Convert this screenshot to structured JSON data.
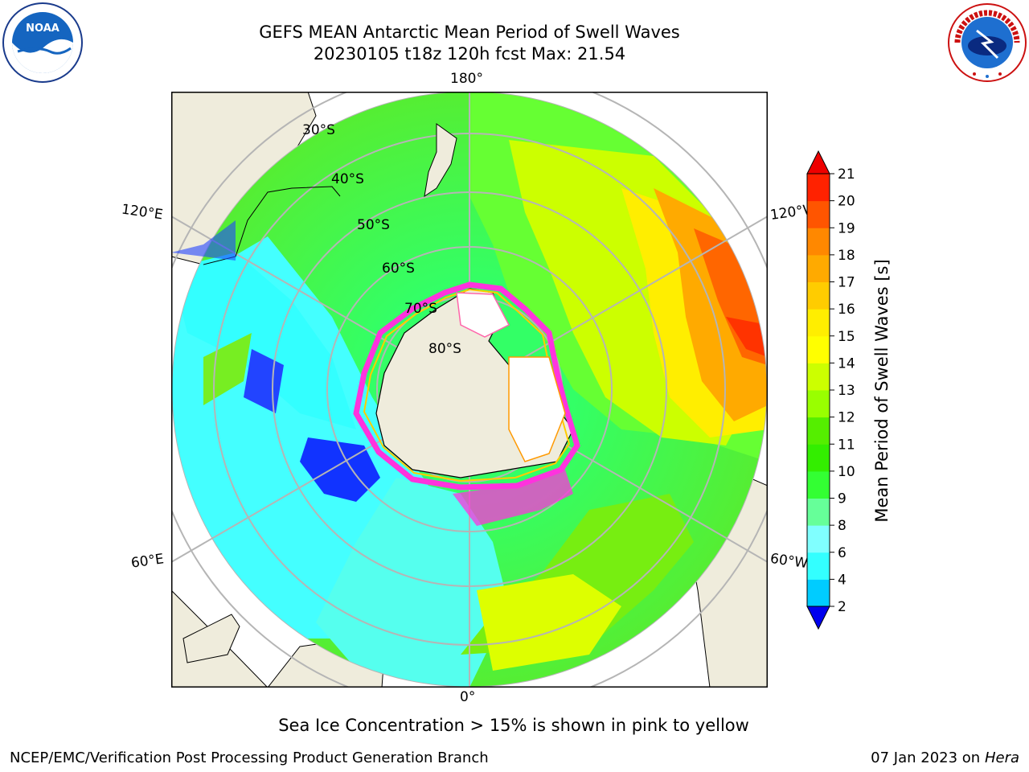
{
  "title": {
    "line1": "GEFS MEAN Antarctic Mean Period of Swell Waves",
    "line2": "20230105 t18z 120h fcst   Max: 21.54"
  },
  "logos": {
    "left": "noaa-logo",
    "right": "nws-logo",
    "left_text": "NOAA",
    "right_text": "NATIONAL WEATHER SERVICE"
  },
  "map": {
    "projection": "south-polar-stereographic",
    "lon_labels": {
      "top": "180°",
      "bottom": "0°",
      "upper_left": "120°E",
      "upper_right": "120°W",
      "lower_left": "60°E",
      "lower_right": "60°W"
    },
    "lat_labels": [
      "30°S",
      "40°S",
      "50°S",
      "60°S",
      "70°S",
      "80°S"
    ]
  },
  "colorbar": {
    "label": "Mean Period of Swell Waves [s]",
    "ticks": [
      "2",
      "4",
      "6",
      "8",
      "9",
      "10",
      "11",
      "12",
      "13",
      "14",
      "15",
      "16",
      "17",
      "18",
      "19",
      "20",
      "21"
    ],
    "colors": [
      "#0019ff",
      "#00ccff",
      "#33ffff",
      "#80ffff",
      "#66ff99",
      "#33ff33",
      "#33ee00",
      "#55ee00",
      "#99ff00",
      "#ccff00",
      "#ffff00",
      "#ffee00",
      "#ffcc00",
      "#ffaa00",
      "#ff8800",
      "#ff5500",
      "#ff2200"
    ],
    "under_color": "#0000ee",
    "over_color": "#ee0000"
  },
  "caption": "Sea Ice Concentration > 15% is shown in pink to yellow",
  "footer": {
    "left": "NCEP/EMC/Verification Post Processing Product Generation Branch",
    "right_date": "07 Jan 2023 on ",
    "right_machine": "Hera"
  }
}
